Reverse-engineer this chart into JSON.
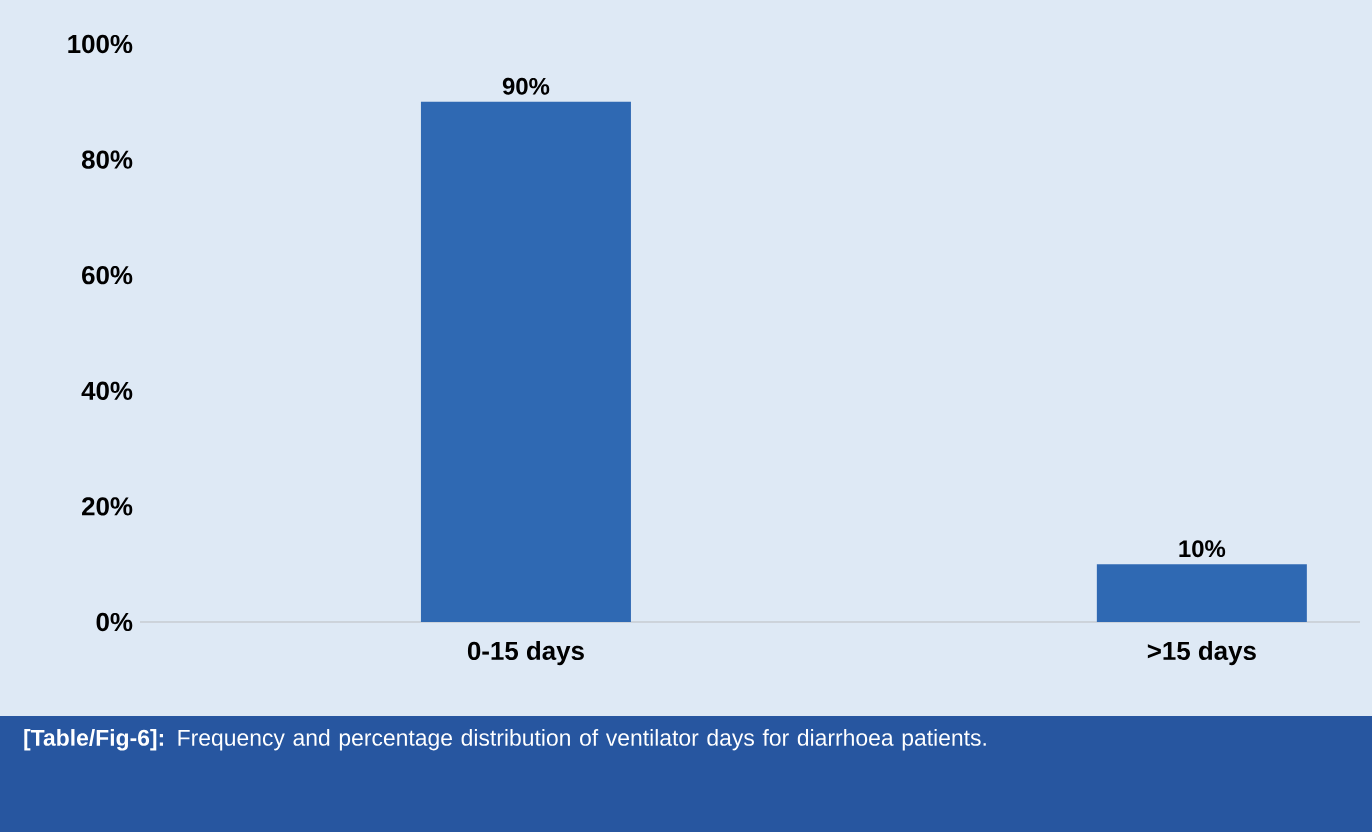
{
  "chart_data": {
    "type": "bar",
    "categories": [
      "0-15 days",
      ">15 days"
    ],
    "values": [
      90,
      10
    ],
    "value_labels": [
      "90%",
      "10%"
    ],
    "color": "#2f69b3",
    "ylim": [
      0,
      100
    ],
    "yticks": [
      {
        "value": 0,
        "label": "0%"
      },
      {
        "value": 20,
        "label": "20%"
      },
      {
        "value": 40,
        "label": "40%"
      },
      {
        "value": 60,
        "label": "60%"
      },
      {
        "value": 80,
        "label": "80%"
      },
      {
        "value": 100,
        "label": "100%"
      }
    ],
    "grid": false,
    "annotations": [
      "**[Table/Fig-6]:** Frequency and percentage distribution of ventilator days for diarrhoea patients."
    ]
  }
}
